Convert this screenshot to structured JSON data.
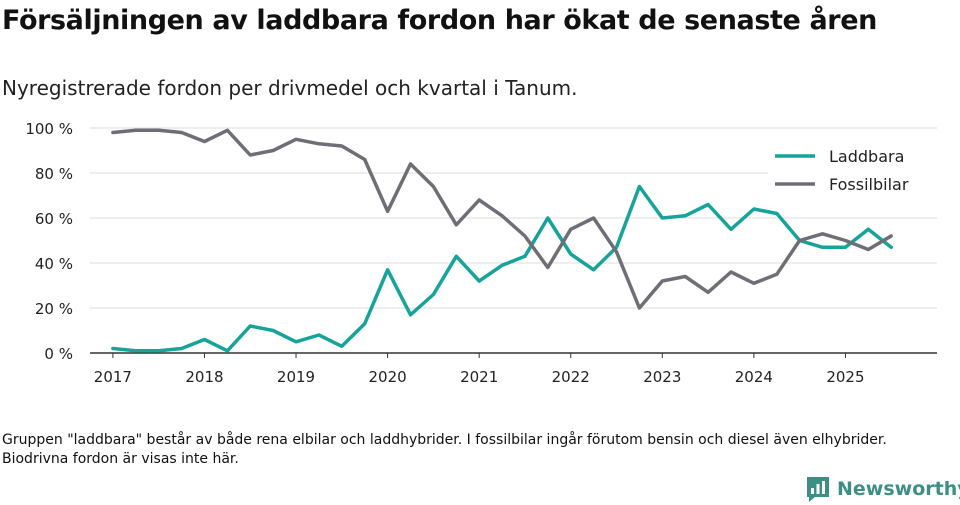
{
  "title": "Försäljningen av laddbara fordon har ökat de senaste åren",
  "subtitle": "Nyregistrerade fordon per drivmedel och kvartal i Tanum.",
  "footnote": "Gruppen \"laddbara\" består av både rena elbilar och laddhybrider. I fossilbilar ingår förutom bensin och diesel även elhybrider. Biodrivna fordon är visas inte här.",
  "brand": {
    "name": "Newsworthy",
    "color": "#3d8f86"
  },
  "chart_data": {
    "type": "line",
    "title": "Försäljningen av laddbara fordon har ökat de senaste åren",
    "xlabel": "",
    "ylabel": "",
    "grid": true,
    "legend_position": "top-right",
    "ylim": [
      0,
      100
    ],
    "y_ticks": [
      0,
      20,
      40,
      60,
      80,
      100
    ],
    "y_tick_labels": [
      "0 %",
      "20 %",
      "40 %",
      "60 %",
      "80 %",
      "100 %"
    ],
    "xlim": [
      2016.75,
      2026
    ],
    "x_ticks": [
      2017,
      2018,
      2019,
      2020,
      2021,
      2022,
      2023,
      2024,
      2025
    ],
    "x_tick_labels": [
      "2017",
      "2018",
      "2019",
      "2020",
      "2021",
      "2022",
      "2023",
      "2024",
      "2025"
    ],
    "x": [
      2017,
      2017.25,
      2017.5,
      2017.75,
      2018,
      2018.25,
      2018.5,
      2018.75,
      2019,
      2019.25,
      2019.5,
      2019.75,
      2020,
      2020.25,
      2020.5,
      2020.75,
      2021,
      2021.25,
      2021.5,
      2021.75,
      2022,
      2022.25,
      2022.5,
      2022.75,
      2023,
      2023.25,
      2023.5,
      2023.75,
      2024,
      2024.25,
      2024.5,
      2024.75,
      2025,
      2025.25,
      2025.5
    ],
    "series": [
      {
        "name": "Laddbara",
        "color": "#15a39a",
        "values": [
          2,
          1,
          1,
          2,
          6,
          1,
          12,
          10,
          5,
          8,
          3,
          13,
          37,
          17,
          26,
          43,
          32,
          39,
          43,
          60,
          44,
          37,
          47,
          74,
          60,
          61,
          66,
          55,
          64,
          62,
          50,
          47,
          47,
          55,
          47
        ]
      },
      {
        "name": "Fossilbilar",
        "color": "#6f6e76",
        "values": [
          98,
          99,
          99,
          98,
          94,
          99,
          88,
          90,
          95,
          93,
          92,
          86,
          63,
          84,
          74,
          57,
          68,
          61,
          52,
          38,
          55,
          60,
          45,
          20,
          32,
          34,
          27,
          36,
          31,
          35,
          50,
          53,
          50,
          46,
          52
        ]
      }
    ]
  }
}
